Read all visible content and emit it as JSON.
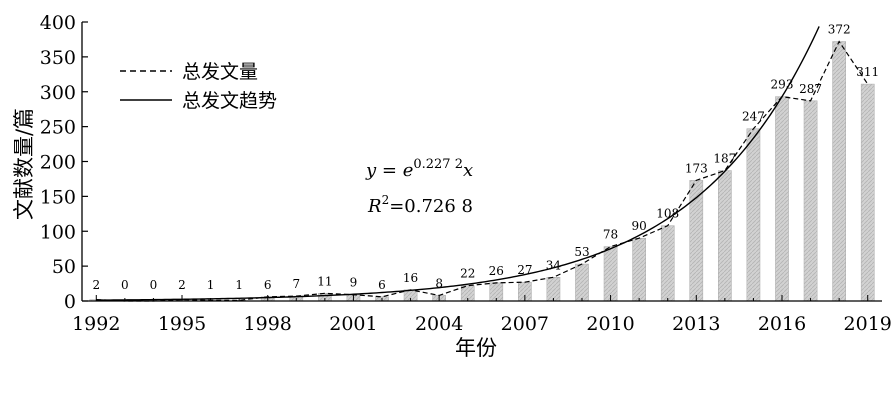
{
  "chart_data": {
    "type": "bar",
    "xlabel": "年份",
    "ylabel": "文献数量/篇",
    "ylim": [
      0,
      400
    ],
    "yticks": [
      "0",
      "50",
      "100",
      "150",
      "200",
      "250",
      "300",
      "350",
      "400"
    ],
    "xticks": [
      "1992",
      "1995",
      "1998",
      "2001",
      "2004",
      "2007",
      "2010",
      "2013",
      "2016",
      "2019"
    ],
    "grid": false,
    "legend_position": "top-left",
    "categories": [
      "1992",
      "1993",
      "1994",
      "1995",
      "1996",
      "1997",
      "1998",
      "1999",
      "2000",
      "2001",
      "2002",
      "2003",
      "2004",
      "2005",
      "2006",
      "2007",
      "2008",
      "2009",
      "2010",
      "2011",
      "2012",
      "2013",
      "2014",
      "2015",
      "2016",
      "2017",
      "2018",
      "2019"
    ],
    "values": [
      2,
      0,
      0,
      2,
      1,
      1,
      6,
      7,
      11,
      9,
      6,
      16,
      8,
      22,
      26,
      27,
      34,
      53,
      78,
      90,
      108,
      173,
      187,
      247,
      293,
      287,
      372,
      311
    ],
    "series": [
      {
        "name": "总发文量",
        "style": "dashed",
        "values": [
          2,
          0,
          0,
          2,
          1,
          1,
          6,
          7,
          11,
          9,
          6,
          16,
          8,
          22,
          26,
          27,
          34,
          53,
          78,
          90,
          108,
          173,
          187,
          247,
          293,
          287,
          372,
          311
        ]
      },
      {
        "name": "总发文趋势",
        "style": "solid"
      }
    ],
    "equation": {
      "lhs": "y",
      "eq": " = ",
      "base": "e",
      "exponent": "0.227 2",
      "var": "x"
    },
    "r_squared": {
      "sym": "R",
      "sup": "2",
      "value": "=0.726 8"
    },
    "bar_color": "#cfcfcf",
    "line_color": "#000000"
  }
}
